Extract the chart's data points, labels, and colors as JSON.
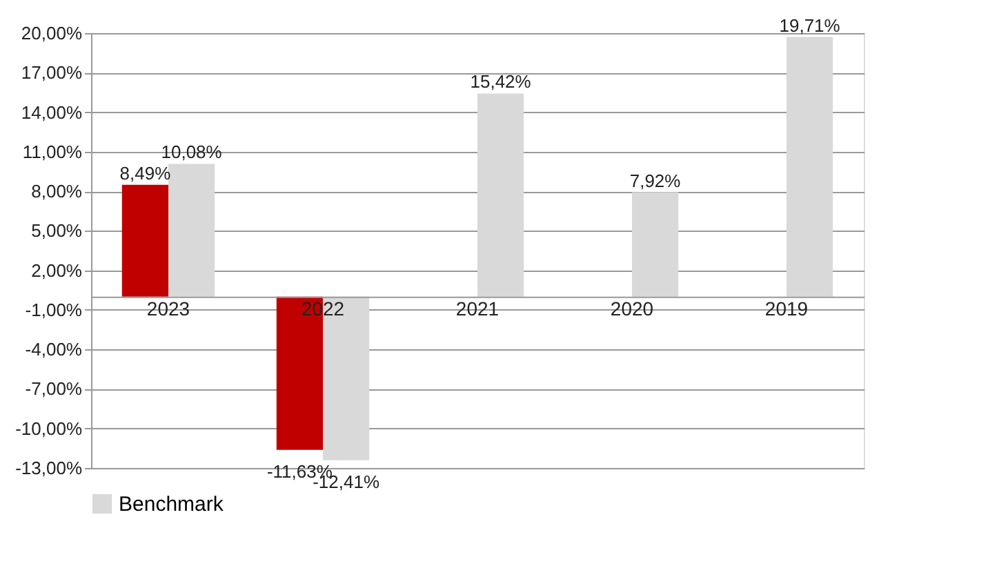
{
  "chart_data": {
    "type": "bar",
    "categories": [
      "2023",
      "2022",
      "2021",
      "2020",
      "2019"
    ],
    "series": [
      {
        "color": "#c00000",
        "values": [
          8.49,
          -11.63,
          null,
          null,
          null
        ],
        "value_labels": [
          "8,49%",
          "-11,63%",
          null,
          null,
          null
        ]
      },
      {
        "name": "Benchmark",
        "color": "#d9d9d9",
        "values": [
          10.08,
          -12.41,
          15.42,
          7.92,
          19.71
        ],
        "value_labels": [
          "10,08%",
          "-12,41%",
          "15,42%",
          "7,92%",
          "19,71%"
        ]
      }
    ],
    "ylim": [
      -13,
      20
    ],
    "yticks": [
      {
        "value": 20,
        "label": "20,00%"
      },
      {
        "value": 17,
        "label": "17,00%"
      },
      {
        "value": 14,
        "label": "14,00%"
      },
      {
        "value": 11,
        "label": "11,00%"
      },
      {
        "value": 8,
        "label": "8,00%"
      },
      {
        "value": 5,
        "label": "5,00%"
      },
      {
        "value": 2,
        "label": "2,00%"
      },
      {
        "value": -1,
        "label": "-1,00%"
      },
      {
        "value": -4,
        "label": "-4,00%"
      },
      {
        "value": -7,
        "label": "-7,00%"
      },
      {
        "value": -10,
        "label": "-10,00%"
      },
      {
        "value": -13,
        "label": "-13,00%"
      }
    ],
    "grid": "y",
    "legend": "bottom"
  }
}
